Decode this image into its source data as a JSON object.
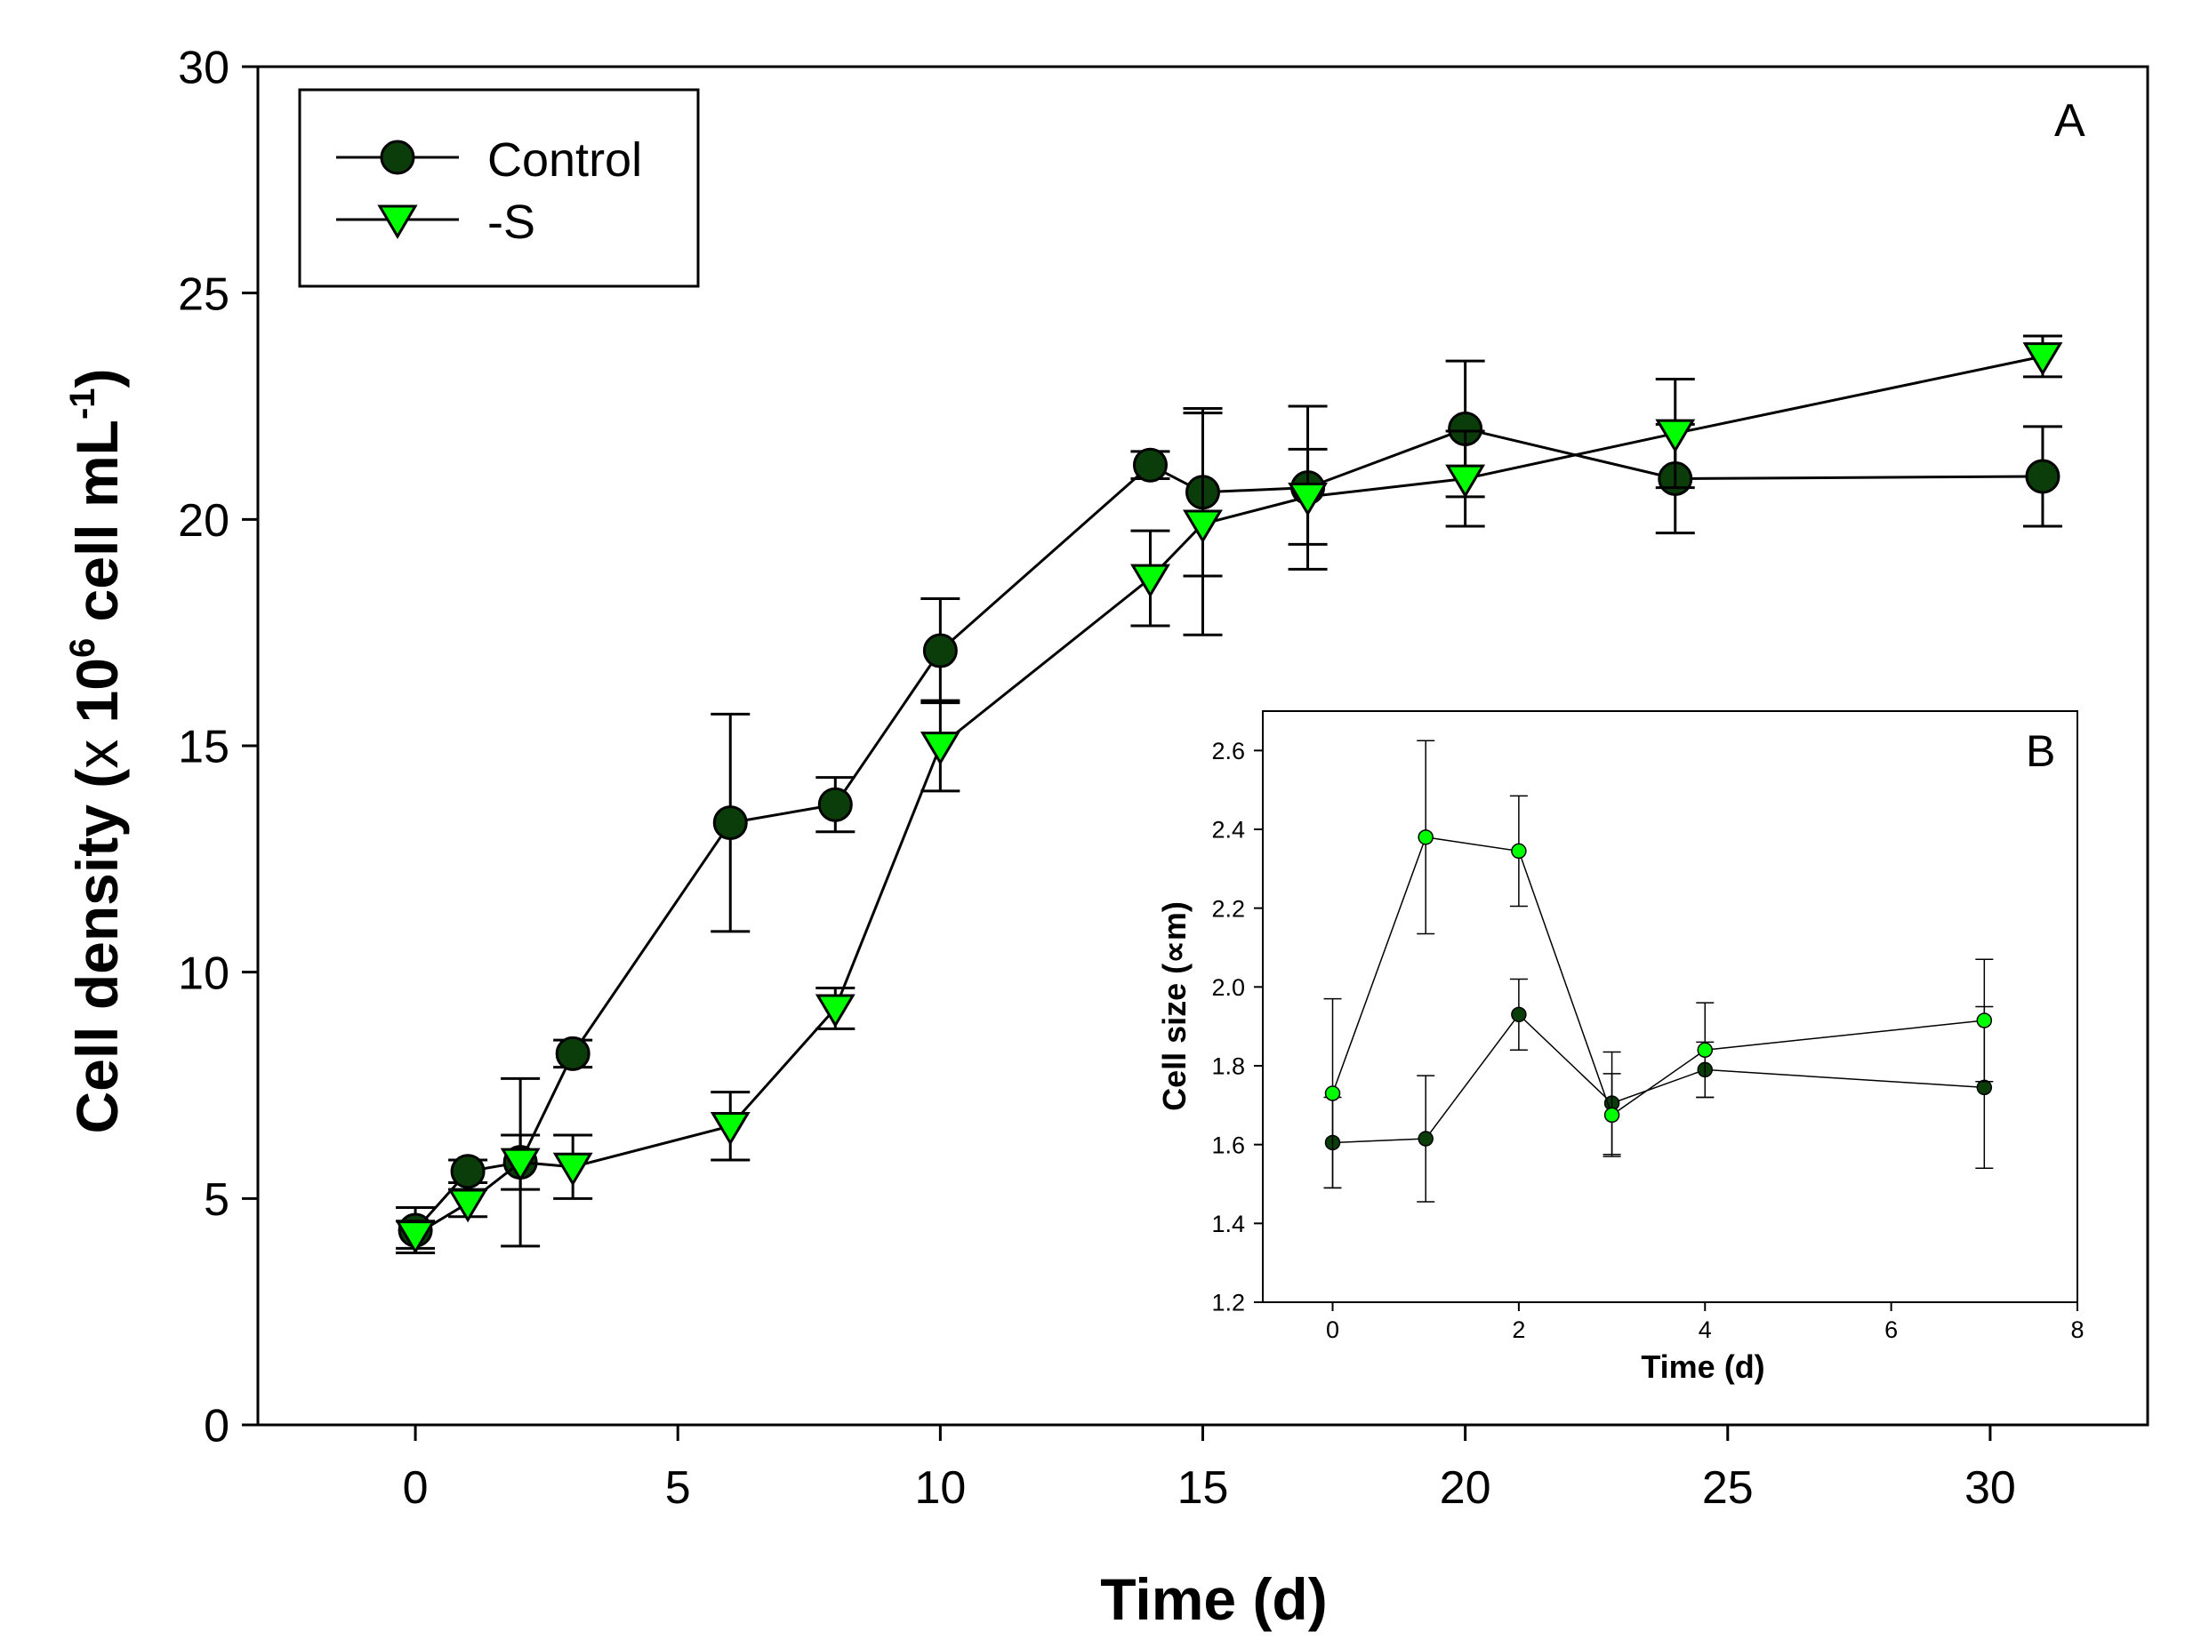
{
  "chart_data": [
    {
      "panel": "A",
      "type": "line",
      "xlabel": "Time (d)",
      "ylabel_main": "Cell density (",
      "ylabel_times": "x",
      "ylabel_ten": " 10",
      "ylabel_exp6": "6",
      "ylabel_unit": " cell mL",
      "ylabel_expneg": "-1",
      "ylabel_close": ")",
      "xlim": [
        -3,
        33
      ],
      "ylim": [
        0,
        30
      ],
      "xticks": [
        0,
        5,
        10,
        15,
        20,
        25,
        30
      ],
      "yticks": [
        0,
        5,
        10,
        15,
        20,
        25,
        30
      ],
      "legend_position": "top-left",
      "series": [
        {
          "name": "Control",
          "marker": "circle",
          "color": "#0b3d0b",
          "x": [
            0,
            1,
            2,
            3,
            6,
            8,
            10,
            14,
            15,
            17,
            20,
            24,
            31
          ],
          "y": [
            4.3,
            5.6,
            5.8,
            8.2,
            13.3,
            13.7,
            17.1,
            21.2,
            20.6,
            20.7,
            22.0,
            20.9,
            20.95
          ],
          "err": [
            0.5,
            0.25,
            1.85,
            0.3,
            2.4,
            0.6,
            1.15,
            0.3,
            1.85,
            1.8,
            1.5,
            1.2,
            1.1
          ]
        },
        {
          "name": "-S",
          "marker": "triangle-down",
          "color": "#00ff00",
          "x": [
            0,
            1,
            2,
            3,
            6,
            8,
            10,
            14,
            15,
            17,
            20,
            24,
            31
          ],
          "y": [
            4.2,
            4.9,
            5.8,
            5.7,
            6.6,
            9.2,
            15.0,
            18.7,
            19.9,
            20.5,
            20.9,
            21.9,
            23.6
          ],
          "err": [
            0.3,
            0.3,
            0.6,
            0.7,
            0.75,
            0.45,
            1.0,
            1.05,
            2.45,
            1.05,
            1.05,
            1.2,
            0.45
          ]
        }
      ],
      "annotation": "A"
    },
    {
      "panel": "B",
      "type": "line",
      "xlabel": "Time (d)",
      "ylabel": "Cell size (∝m)",
      "xlim": [
        -0.75,
        8
      ],
      "ylim": [
        1.2,
        2.7
      ],
      "xticks": [
        0,
        2,
        4,
        6,
        8
      ],
      "yticks": [
        1.2,
        1.4,
        1.6,
        1.8,
        2.0,
        2.2,
        2.4,
        2.6
      ],
      "series": [
        {
          "name": "Control",
          "color": "#0b3d0b",
          "x": [
            0,
            1,
            2,
            3,
            4,
            7
          ],
          "y": [
            1.605,
            1.615,
            1.93,
            1.705,
            1.79,
            1.745
          ],
          "err": [
            0.115,
            0.16,
            0.09,
            0.13,
            0.07,
            0.205
          ]
        },
        {
          "name": "-S",
          "color": "#00ff00",
          "x": [
            0,
            1,
            2,
            3,
            4,
            7
          ],
          "y": [
            1.73,
            2.38,
            2.345,
            1.675,
            1.84,
            1.915
          ],
          "err": [
            0.24,
            0.245,
            0.14,
            0.105,
            0.12,
            0.155
          ]
        }
      ],
      "annotation": "B"
    }
  ]
}
